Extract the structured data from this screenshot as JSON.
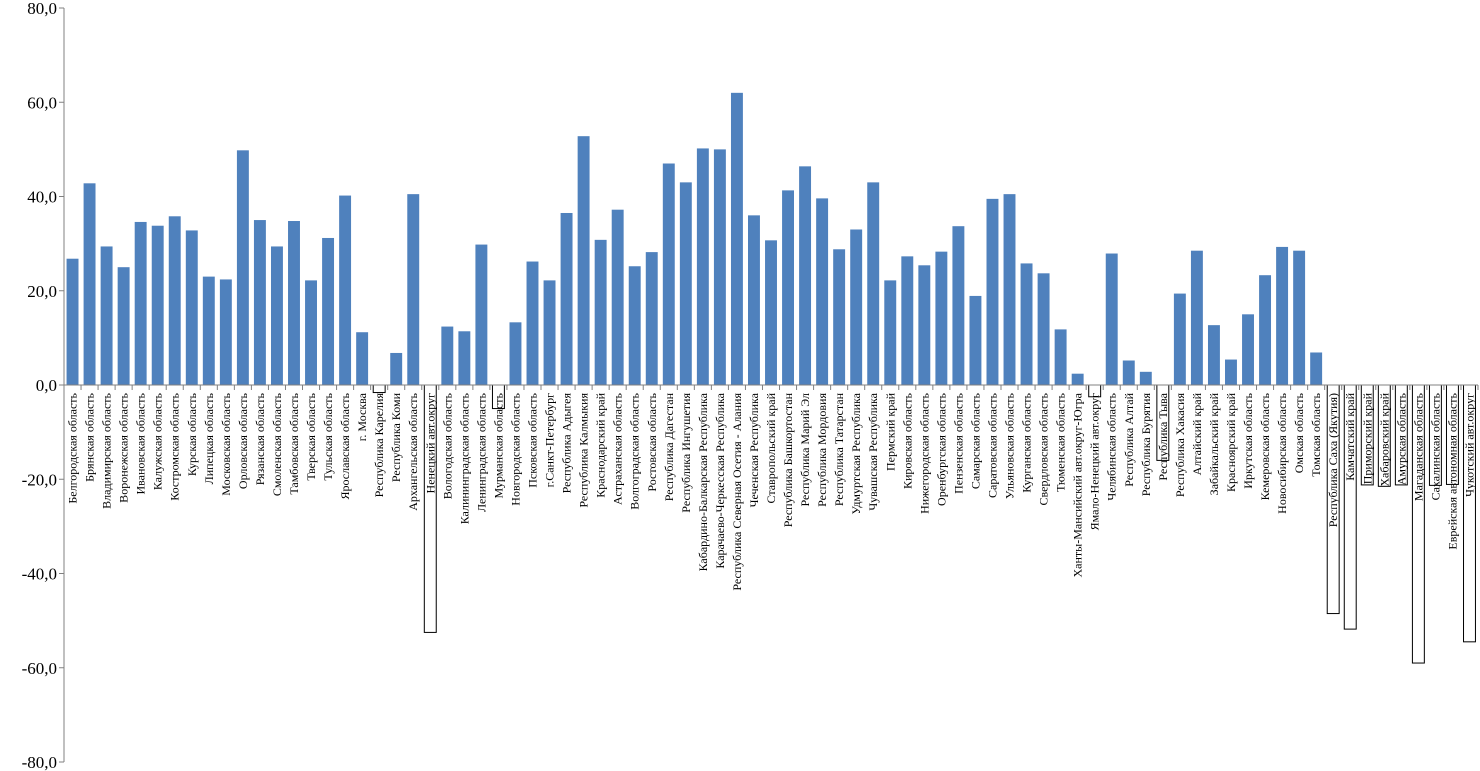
{
  "chart_data": {
    "type": "bar",
    "ylim": [
      -80,
      80
    ],
    "yticks": [
      "80,0",
      "60,0",
      "40,0",
      "20,0",
      "0,0",
      "-20,0",
      "-40,0",
      "-60,0",
      "-80,0"
    ],
    "ytick_values": [
      80,
      60,
      40,
      20,
      0,
      -20,
      -40,
      -60,
      -80
    ],
    "grid": false,
    "legend": "none",
    "colors": {
      "positive": "#4f81bd",
      "negative": "#ffffff",
      "negative_stroke": "#000000",
      "axis": "#808080"
    },
    "categories": [
      "Белгородская область",
      "Брянская область",
      "Владимирская область",
      "Воронежская область",
      "Ивановская область",
      "Калужская область",
      "Костромская область",
      "Курская область",
      "Липецкая область",
      "Московская область",
      "Орловская область",
      "Рязанская область",
      "Смоленская область",
      "Тамбовская область",
      "Тверская область",
      "Тульская область",
      "Ярославская область",
      "г. Москва",
      "Республика Карелия",
      "Республика Коми",
      "Архангельская область",
      "Ненецкий авт.округ",
      "Вологодская область",
      "Калининградская область",
      "Ленинградская область",
      "Мурманская область",
      "Новгородская область",
      "Псковская область",
      "г.Санкт-Петербург",
      "Республика Адыгея",
      "Республика Калмыкия",
      "Краснодарский край",
      "Астраханская область",
      "Волгоградская область",
      "Ростовская область",
      "Республика Дагестан",
      "Республика Ингушетия",
      "Кабардино-Балкарская Республика",
      "Карачаево-Черкесская Республика",
      "Республика Северная Осетия - Алания",
      "Чеченская Республика",
      "Ставропольский край",
      "Республика Башкортостан",
      "Республика Марий Эл",
      "Республика Мордовия",
      "Республика Татарстан",
      "Удмуртская Республика",
      "Чувашская Республика",
      "Пермский край",
      "Кировская область",
      "Нижегородская область",
      "Оренбургская область",
      "Пензенская область",
      "Самарская область",
      "Саратовская область",
      "Ульяновская область",
      "Курганская область",
      "Свердловская область",
      "Тюменская область",
      "Ханты-Мансийский авт.округ-Югра",
      "Ямало-Ненецкий авт.округ",
      "Челябинская область",
      "Республика Алтай",
      "Республика Бурятия",
      "Республика Тыва",
      "Республика Хакасия",
      "Алтайский край",
      "Забайкальский край",
      "Красноярский край",
      "Иркутская область",
      "Кемеровская область",
      "Новосибирская область",
      "Омская область",
      "Томская область",
      "Республика Саха (Якутия)",
      "Камчатский край",
      "Приморский край",
      "Хабаровский край",
      "Амурская область",
      "Магаданская область",
      "Сахалинская область",
      "Еврейская автономная область",
      "Чукотский авт.округ"
    ],
    "values": [
      26.8,
      42.8,
      29.4,
      25.0,
      34.6,
      33.8,
      35.8,
      32.8,
      23.0,
      22.4,
      49.8,
      35.0,
      29.4,
      34.8,
      22.2,
      31.2,
      40.2,
      11.2,
      -1.6,
      6.8,
      40.5,
      -52.5,
      12.4,
      11.4,
      29.8,
      -5.0,
      13.3,
      26.2,
      22.2,
      36.5,
      52.8,
      30.8,
      37.2,
      25.2,
      28.2,
      47.0,
      43.0,
      50.2,
      50.0,
      62.0,
      36.0,
      30.7,
      41.3,
      46.4,
      39.6,
      28.8,
      33.0,
      43.0,
      22.2,
      27.3,
      25.4,
      28.3,
      33.7,
      18.9,
      39.5,
      40.5,
      25.8,
      23.7,
      11.8,
      2.4,
      -2.5,
      27.9,
      5.2,
      2.8,
      -16.0,
      19.4,
      28.5,
      12.7,
      5.4,
      15.0,
      23.3,
      29.3,
      28.5,
      6.9,
      -48.5,
      -51.8,
      -21.2,
      -21.5,
      -21.2,
      -59.0,
      -21.3,
      -21.1,
      -54.5
    ]
  }
}
